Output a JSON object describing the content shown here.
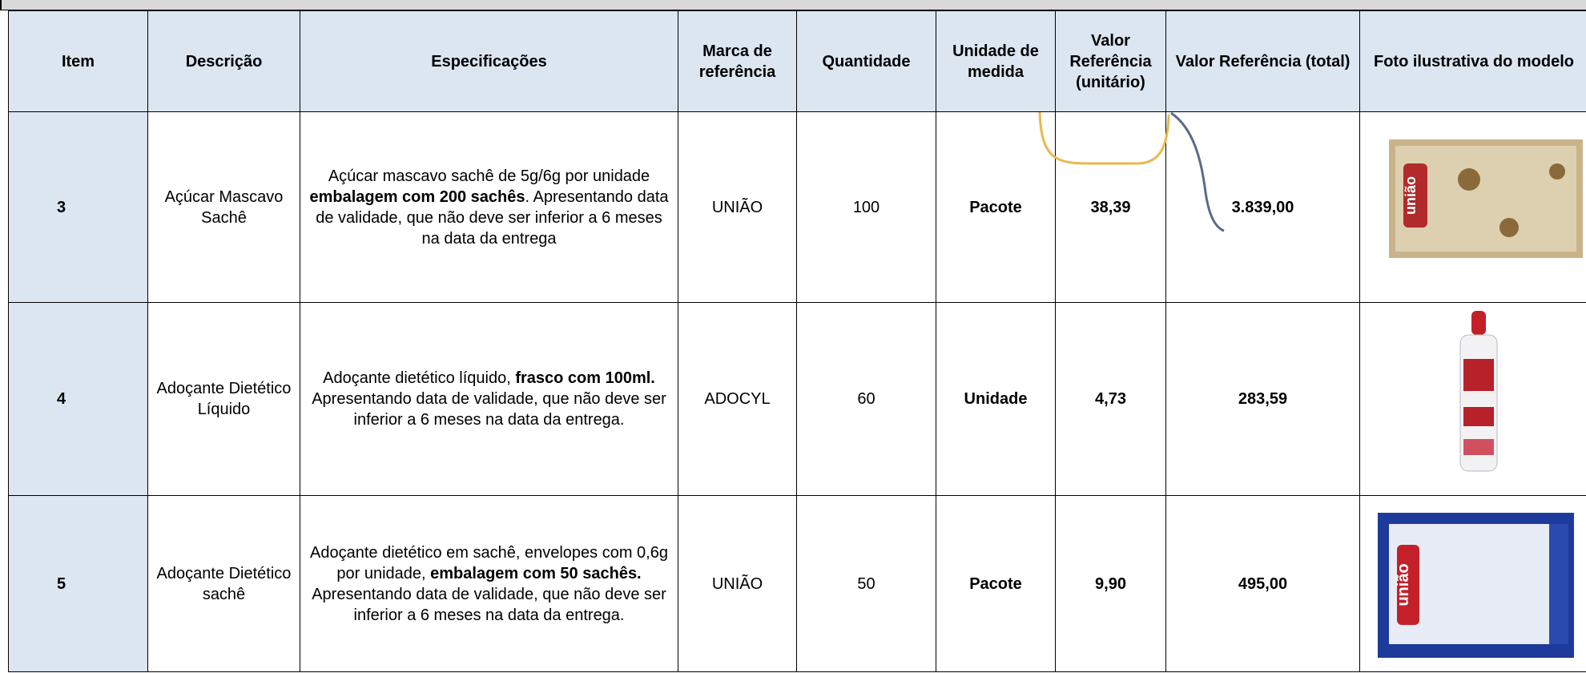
{
  "header": {
    "columns": [
      "Item",
      "Descrição",
      "Especificações",
      "Marca de referência",
      "Quantidade",
      "Unidade de medida",
      "Valor Referência (unitário)",
      "Valor Referência (total)",
      "Foto ilustrativa do modelo"
    ]
  },
  "rows": [
    {
      "item": "3",
      "description": "Açúcar Mascavo Sachê",
      "specification": [
        {
          "text": "Açúcar mascavo sachê de 5g/6g por unidade ",
          "bold": false
        },
        {
          "text": "embalagem com 200 sachês",
          "bold": true
        },
        {
          "text": ". Apresentando data de validade, que não deve ser inferior a 6 meses na data da entrega",
          "bold": false
        }
      ],
      "brand": "UNIÃO",
      "quantity": "100",
      "unit": "Pacote",
      "unit_value": "38,39",
      "total_value": "3.839,00"
    },
    {
      "item": "4",
      "description": "Adoçante Dietético Líquido",
      "specification": [
        {
          "text": "Adoçante dietético líquido, ",
          "bold": false
        },
        {
          "text": "frasco com 100ml.",
          "bold": true
        },
        {
          "text": " Apresentando data de validade, que não deve ser inferior a 6 meses na data da entrega.",
          "bold": false
        }
      ],
      "brand": "ADOCYL",
      "quantity": "60",
      "unit": "Unidade",
      "unit_value": "4,73",
      "total_value": "283,59"
    },
    {
      "item": "5",
      "description": "Adoçante Dietético sachê",
      "specification": [
        {
          "text": "Adoçante dietético em sachê, envelopes com 0,6g por unidade, ",
          "bold": false
        },
        {
          "text": "embalagem com 50 sachês.",
          "bold": true
        },
        {
          "text": " Apresentando data de validade, que não deve ser inferior a 6 meses na data da entrega.",
          "bold": false
        }
      ],
      "brand": "UNIÃO",
      "quantity": "50",
      "unit": "Pacote",
      "unit_value": "9,90",
      "total_value": "495,00"
    }
  ]
}
